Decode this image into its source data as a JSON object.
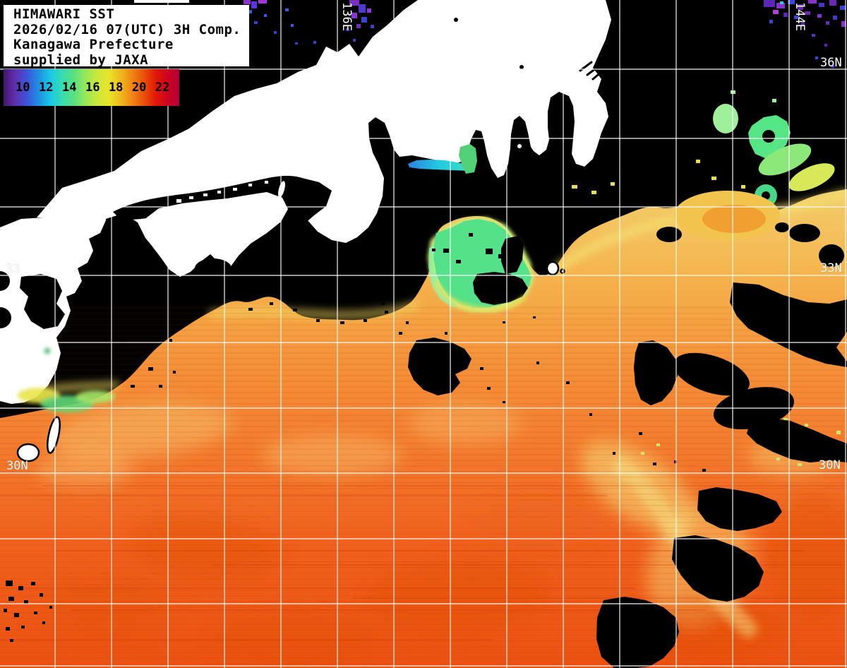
{
  "header": {
    "line1": "HIMAWARI SST",
    "line2": "2026/02/16 07(UTC) 3H Comp.",
    "line3": "Kanagawa Prefecture",
    "line4": "supplied by JAXA"
  },
  "colorbar": {
    "tick_labels": [
      "10",
      "12",
      "14",
      "16",
      "18",
      "20",
      "22"
    ],
    "gradient_colors": [
      "#45156e",
      "#6030b0",
      "#3a55d8",
      "#2090e0",
      "#18c8e6",
      "#38dcb0",
      "#58e080",
      "#96e858",
      "#cce83c",
      "#e8e428",
      "#f0b81e",
      "#f08414",
      "#ea500a",
      "#e01806",
      "#cc0420",
      "#b4003a"
    ],
    "unit_scale_min": 10,
    "unit_scale_max": 23
  },
  "map_labels": {
    "lon_136e": "136E",
    "lon_144e": "144E",
    "lat_36n_right": "36N",
    "lat_33n_right": "33N",
    "lat_33_left": "33",
    "lat_30n_left": "30N",
    "lat_30n_right": "30N"
  },
  "colors": {
    "background_nodata": "#000000",
    "land_cloud": "#ffffff",
    "grid_line": "#ffffff",
    "warm_water_top": "#f2cf6e",
    "warm_water_mid": "#f49038",
    "warm_water_bottom": "#ec5212",
    "cold_water_green": "#55e08a",
    "cold_water_cyan": "#20c8e0",
    "anomaly_purple": "#6a28b8"
  }
}
